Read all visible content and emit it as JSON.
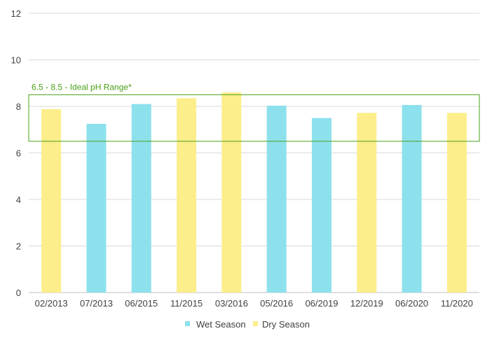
{
  "chart_data": {
    "type": "bar",
    "categories": [
      "02/2013",
      "07/2013",
      "06/2015",
      "11/2015",
      "03/2016",
      "05/2016",
      "06/2019",
      "12/2019",
      "06/2020",
      "11/2020"
    ],
    "values": [
      7.88,
      7.25,
      8.1,
      8.35,
      8.6,
      8.03,
      7.5,
      7.72,
      8.06,
      7.72
    ],
    "seasons": [
      "Dry Season",
      "Wet Season",
      "Wet Season",
      "Dry Season",
      "Dry Season",
      "Wet Season",
      "Wet Season",
      "Dry Season",
      "Wet Season",
      "Dry Season"
    ],
    "series": [
      {
        "name": "Wet Season",
        "color": "#8de1ec"
      },
      {
        "name": "Dry Season",
        "color": "#fcee8a"
      }
    ],
    "ylim": [
      0,
      12
    ],
    "yticks": [
      0,
      2,
      4,
      6,
      8,
      10,
      12
    ],
    "grid": true,
    "legend_position": "bottom",
    "ideal_range": {
      "label": "6.5 - 8.5 - Ideal pH Range*",
      "min": 6.5,
      "max": 8.5,
      "color": "#4aa017"
    }
  }
}
